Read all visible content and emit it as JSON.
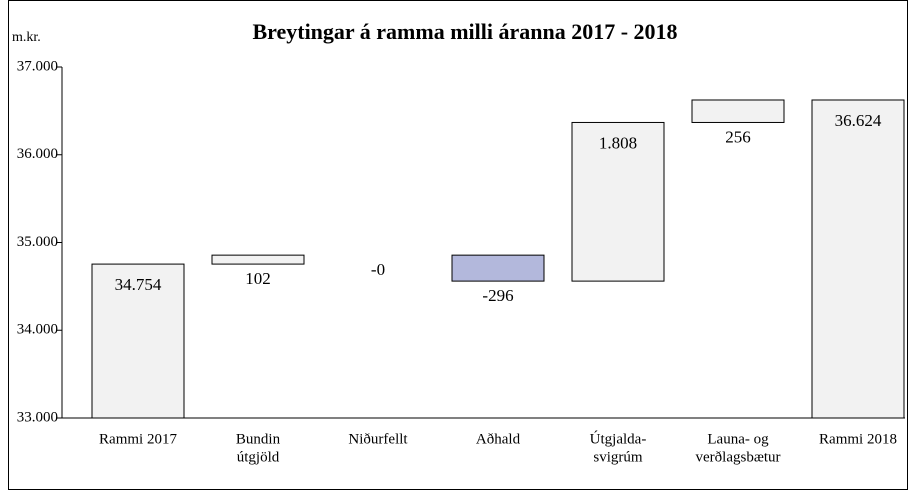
{
  "chart_data": {
    "type": "waterfall",
    "title": "Breytingar á ramma milli áranna 2017 - 2018",
    "unit_label": "m.kr.",
    "categories": [
      [
        "Rammi 2017"
      ],
      [
        "Bundin",
        "útgjöld"
      ],
      [
        "Niðurfellt"
      ],
      [
        "Aðhald"
      ],
      [
        "Útgjalda-",
        "svigrúm"
      ],
      [
        "Launa- og",
        "verðlagsbætur"
      ],
      [
        "Rammi 2018"
      ]
    ],
    "values": [
      34754,
      102,
      0,
      -296,
      1808,
      256,
      36624
    ],
    "value_labels": [
      "34.754",
      "102",
      "-0",
      "-296",
      "1.808",
      "256",
      "36.624"
    ],
    "is_total": [
      true,
      false,
      false,
      false,
      false,
      false,
      true
    ],
    "colors": [
      "#f2f2f2",
      "#f2f2f2",
      "#f2f2f2",
      "#b3b8dc",
      "#f2f2f2",
      "#f2f2f2",
      "#f2f2f2"
    ],
    "ylim": [
      33000,
      37000
    ],
    "yticks": [
      {
        "value": 33000,
        "label": "33.000"
      },
      {
        "value": 34000,
        "label": "34.000"
      },
      {
        "value": 35000,
        "label": "35.000"
      },
      {
        "value": 36000,
        "label": "36.000"
      },
      {
        "value": 37000,
        "label": "37.000"
      }
    ],
    "grid": false
  }
}
